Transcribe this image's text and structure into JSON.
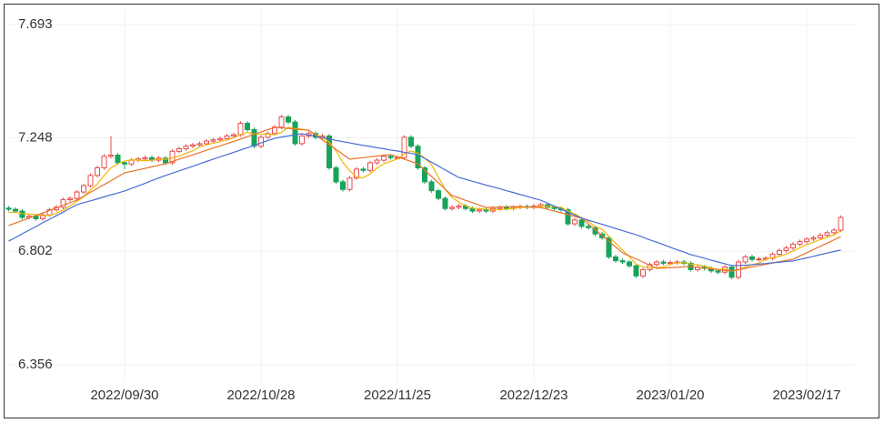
{
  "chart_data": {
    "type": "candlestick",
    "categories": [
      null,
      null,
      null,
      null,
      null,
      null,
      null,
      null,
      null,
      null,
      null,
      null,
      null,
      null,
      null,
      null,
      null,
      "2022/09/30",
      null,
      null,
      null,
      null,
      null,
      null,
      null,
      null,
      null,
      null,
      null,
      null,
      null,
      null,
      null,
      null,
      null,
      null,
      null,
      "2022/10/28",
      null,
      null,
      null,
      null,
      null,
      null,
      null,
      null,
      null,
      null,
      null,
      null,
      null,
      null,
      null,
      null,
      null,
      null,
      null,
      "2022/11/25",
      null,
      null,
      null,
      null,
      null,
      null,
      null,
      null,
      null,
      null,
      null,
      null,
      null,
      null,
      null,
      null,
      null,
      null,
      null,
      "2022/12/23",
      null,
      null,
      null,
      null,
      null,
      null,
      null,
      null,
      null,
      null,
      null,
      null,
      null,
      null,
      null,
      null,
      null,
      null,
      null,
      "2023/01/20",
      null,
      null,
      null,
      null,
      null,
      null,
      null,
      null,
      null,
      null,
      null,
      null,
      null,
      null,
      null,
      null,
      null,
      null,
      null,
      "2023/02/17",
      null,
      null,
      null,
      null,
      null
    ],
    "open": [
      6.972,
      6.967,
      6.96,
      6.935,
      6.94,
      6.93,
      6.945,
      6.965,
      6.975,
      7.005,
      7.01,
      7.035,
      7.06,
      7.1,
      7.13,
      7.175,
      7.18,
      7.15,
      7.145,
      7.16,
      7.165,
      7.17,
      7.16,
      7.168,
      7.15,
      7.195,
      7.205,
      7.215,
      7.22,
      7.225,
      7.235,
      7.24,
      7.245,
      7.255,
      7.26,
      7.305,
      7.28,
      7.215,
      7.25,
      7.265,
      7.29,
      7.33,
      7.31,
      7.225,
      7.255,
      7.265,
      7.25,
      7.255,
      7.13,
      7.075,
      7.045,
      7.09,
      7.125,
      7.12,
      7.15,
      7.16,
      7.175,
      7.17,
      7.17,
      7.25,
      7.215,
      7.13,
      7.075,
      7.04,
      7.01,
      6.97,
      6.975,
      6.98,
      6.97,
      6.96,
      6.965,
      6.96,
      6.97,
      6.975,
      6.97,
      6.975,
      6.978,
      6.975,
      6.98,
      6.985,
      6.975,
      6.97,
      6.965,
      6.91,
      6.925,
      6.9,
      6.895,
      6.87,
      6.855,
      6.78,
      6.765,
      6.76,
      6.745,
      6.705,
      6.73,
      6.75,
      6.76,
      6.755,
      6.758,
      6.76,
      6.755,
      6.73,
      6.74,
      6.735,
      6.725,
      6.72,
      6.74,
      6.7,
      6.76,
      6.78,
      6.77,
      6.772,
      6.775,
      6.79,
      6.805,
      6.815,
      6.83,
      6.84,
      6.85,
      6.855,
      6.865,
      6.875,
      6.885
    ],
    "high": [
      6.98,
      6.975,
      6.968,
      6.948,
      6.948,
      6.953,
      6.973,
      6.983,
      7.013,
      7.018,
      7.043,
      7.068,
      7.108,
      7.138,
      7.183,
      7.255,
      7.188,
      7.158,
      7.168,
      7.173,
      7.178,
      7.178,
      7.176,
      7.176,
      7.203,
      7.213,
      7.223,
      7.228,
      7.233,
      7.243,
      7.248,
      7.253,
      7.263,
      7.268,
      7.313,
      7.313,
      7.288,
      7.258,
      7.273,
      7.298,
      7.338,
      7.338,
      7.318,
      7.263,
      7.273,
      7.273,
      7.263,
      7.263,
      7.138,
      7.083,
      7.098,
      7.133,
      7.133,
      7.158,
      7.168,
      7.183,
      7.183,
      7.178,
      7.258,
      7.258,
      7.223,
      7.138,
      7.083,
      7.048,
      7.018,
      6.983,
      6.988,
      6.988,
      6.978,
      6.973,
      6.973,
      6.978,
      6.983,
      6.983,
      6.983,
      6.986,
      6.986,
      6.988,
      6.993,
      6.993,
      6.983,
      6.978,
      6.973,
      6.933,
      6.933,
      6.908,
      6.903,
      6.878,
      6.863,
      6.788,
      6.773,
      6.768,
      6.753,
      6.738,
      6.758,
      6.768,
      6.768,
      6.766,
      6.768,
      6.768,
      6.763,
      6.748,
      6.748,
      6.743,
      6.733,
      6.748,
      6.748,
      6.768,
      6.788,
      6.788,
      6.78,
      6.783,
      6.798,
      6.813,
      6.823,
      6.838,
      6.848,
      6.858,
      6.863,
      6.873,
      6.883,
      6.893,
      6.943
    ],
    "low": [
      6.959,
      6.952,
      6.927,
      6.927,
      6.922,
      6.922,
      6.937,
      6.957,
      6.967,
      6.997,
      7.002,
      7.027,
      7.052,
      7.092,
      7.122,
      7.167,
      7.142,
      7.125,
      7.137,
      7.152,
      7.157,
      7.152,
      7.152,
      7.142,
      7.142,
      7.187,
      7.197,
      7.207,
      7.212,
      7.217,
      7.227,
      7.232,
      7.237,
      7.247,
      7.252,
      7.272,
      7.207,
      7.207,
      7.242,
      7.257,
      7.282,
      7.302,
      7.217,
      7.217,
      7.247,
      7.242,
      7.242,
      7.122,
      7.067,
      7.037,
      7.037,
      7.082,
      7.112,
      7.112,
      7.142,
      7.152,
      7.162,
      7.162,
      7.162,
      7.207,
      7.122,
      7.067,
      7.032,
      7.002,
      6.962,
      6.962,
      6.967,
      6.962,
      6.952,
      6.952,
      6.952,
      6.952,
      6.962,
      6.962,
      6.962,
      6.967,
      6.967,
      6.967,
      6.972,
      6.967,
      6.962,
      6.957,
      6.902,
      6.902,
      6.892,
      6.887,
      6.862,
      6.847,
      6.772,
      6.757,
      6.752,
      6.737,
      6.697,
      6.697,
      6.722,
      6.742,
      6.747,
      6.747,
      6.75,
      6.747,
      6.722,
      6.722,
      6.727,
      6.717,
      6.712,
      6.712,
      6.692,
      6.692,
      6.752,
      6.762,
      6.762,
      6.764,
      6.767,
      6.782,
      6.797,
      6.807,
      6.822,
      6.832,
      6.842,
      6.847,
      6.857,
      6.867,
      6.877
    ],
    "close": [
      6.967,
      6.96,
      6.935,
      6.94,
      6.93,
      6.945,
      6.965,
      6.975,
      7.005,
      7.01,
      7.035,
      7.06,
      7.1,
      7.13,
      7.175,
      7.18,
      7.15,
      7.145,
      7.16,
      7.165,
      7.17,
      7.16,
      7.168,
      7.15,
      7.195,
      7.205,
      7.215,
      7.22,
      7.225,
      7.235,
      7.24,
      7.245,
      7.255,
      7.26,
      7.305,
      7.28,
      7.215,
      7.25,
      7.265,
      7.29,
      7.33,
      7.31,
      7.225,
      7.255,
      7.265,
      7.25,
      7.255,
      7.13,
      7.075,
      7.045,
      7.09,
      7.125,
      7.12,
      7.15,
      7.16,
      7.175,
      7.17,
      7.17,
      7.25,
      7.215,
      7.13,
      7.075,
      7.04,
      7.01,
      6.97,
      6.975,
      6.98,
      6.97,
      6.96,
      6.965,
      6.96,
      6.97,
      6.975,
      6.97,
      6.975,
      6.978,
      6.975,
      6.98,
      6.985,
      6.975,
      6.97,
      6.965,
      6.91,
      6.925,
      6.9,
      6.895,
      6.87,
      6.855,
      6.78,
      6.765,
      6.76,
      6.745,
      6.705,
      6.73,
      6.75,
      6.76,
      6.755,
      6.758,
      6.76,
      6.755,
      6.73,
      6.74,
      6.735,
      6.725,
      6.72,
      6.74,
      6.7,
      6.76,
      6.78,
      6.77,
      6.772,
      6.775,
      6.79,
      6.805,
      6.815,
      6.83,
      6.84,
      6.85,
      6.855,
      6.865,
      6.875,
      6.885,
      6.935
    ],
    "up_color": "#e84c4c",
    "down_color": "#17a35a",
    "series": [
      {
        "color": "#f2b705",
        "values": [
          6.955,
          6.955,
          6.95,
          6.948,
          6.946,
          6.942,
          6.943,
          6.951,
          6.964,
          6.98,
          6.998,
          7.017,
          7.042,
          7.067,
          7.1,
          7.129,
          7.147,
          7.156,
          7.162,
          7.16,
          7.158,
          7.16,
          7.165,
          7.163,
          7.169,
          7.176,
          7.187,
          7.197,
          7.212,
          7.22,
          7.227,
          7.233,
          7.24,
          7.247,
          7.261,
          7.269,
          7.263,
          7.262,
          7.263,
          7.26,
          7.27,
          7.289,
          7.284,
          7.282,
          7.277,
          7.261,
          7.25,
          7.231,
          7.195,
          7.151,
          7.119,
          7.093,
          7.091,
          7.106,
          7.129,
          7.146,
          7.155,
          7.165,
          7.185,
          7.196,
          7.187,
          7.168,
          7.142,
          7.094,
          7.045,
          7.014,
          6.995,
          6.981,
          6.971,
          6.97,
          6.967,
          6.965,
          6.966,
          6.968,
          6.97,
          6.974,
          6.975,
          6.976,
          6.979,
          6.979,
          6.977,
          6.975,
          6.961,
          6.949,
          6.934,
          6.919,
          6.9,
          6.889,
          6.86,
          6.833,
          6.806,
          6.781,
          6.751,
          6.741,
          6.738,
          6.738,
          6.74,
          6.751,
          6.757,
          6.758,
          6.752,
          6.749,
          6.744,
          6.737,
          6.73,
          6.732,
          6.724,
          6.729,
          6.74,
          6.75,
          6.756,
          6.771,
          6.777,
          6.782,
          6.791,
          6.803,
          6.816,
          6.828,
          6.838,
          6.848,
          6.857,
          6.866,
          6.883
        ]
      },
      {
        "color": "#e8732a",
        "values": [
          6.903,
          6.913,
          6.923,
          6.933,
          6.943,
          6.953,
          6.963,
          6.973,
          6.983,
          6.993,
          7.003,
          7.018,
          7.034,
          7.049,
          7.064,
          7.079,
          7.095,
          7.11,
          7.116,
          7.122,
          7.128,
          7.134,
          7.14,
          7.146,
          7.155,
          7.164,
          7.172,
          7.181,
          7.19,
          7.199,
          7.208,
          7.216,
          7.225,
          7.234,
          7.243,
          7.252,
          7.262,
          7.271,
          7.28,
          7.289,
          7.287,
          7.285,
          7.282,
          7.28,
          7.278,
          7.259,
          7.24,
          7.221,
          7.202,
          7.183,
          7.164,
          7.167,
          7.17,
          7.173,
          7.176,
          7.179,
          7.182,
          7.173,
          7.164,
          7.155,
          7.146,
          7.121,
          7.096,
          7.071,
          7.046,
          7.021,
          7.012,
          7.002,
          6.993,
          6.983,
          6.974,
          6.975,
          6.976,
          6.977,
          6.977,
          6.977,
          6.976,
          6.975,
          6.974,
          6.967,
          6.96,
          6.953,
          6.946,
          6.939,
          6.932,
          6.909,
          6.887,
          6.864,
          6.841,
          6.819,
          6.796,
          6.784,
          6.772,
          6.76,
          6.747,
          6.735,
          6.736,
          6.738,
          6.739,
          6.741,
          6.742,
          6.739,
          6.736,
          6.733,
          6.73,
          6.727,
          6.724,
          6.73,
          6.735,
          6.741,
          6.746,
          6.751,
          6.756,
          6.761,
          6.766,
          6.771,
          6.784,
          6.796,
          6.809,
          6.822,
          6.834,
          6.847,
          6.86
        ]
      },
      {
        "color": "#4a6cd4",
        "values": [
          6.842,
          6.856,
          6.871,
          6.885,
          6.899,
          6.914,
          6.928,
          6.942,
          6.956,
          6.971,
          6.985,
          6.993,
          7.0,
          7.008,
          7.016,
          7.024,
          7.031,
          7.039,
          7.049,
          7.059,
          7.069,
          7.08,
          7.09,
          7.1,
          7.109,
          7.118,
          7.127,
          7.136,
          7.146,
          7.155,
          7.164,
          7.173,
          7.182,
          7.191,
          7.2,
          7.209,
          7.218,
          7.228,
          7.237,
          7.246,
          7.251,
          7.255,
          7.26,
          7.264,
          7.259,
          7.254,
          7.249,
          7.244,
          7.238,
          7.233,
          7.228,
          7.223,
          7.218,
          7.214,
          7.209,
          7.205,
          7.2,
          7.196,
          7.191,
          7.187,
          7.182,
          7.167,
          7.152,
          7.137,
          7.122,
          7.107,
          7.092,
          7.085,
          7.077,
          7.07,
          7.062,
          7.055,
          7.048,
          7.04,
          7.033,
          7.025,
          7.018,
          7.01,
          7.003,
          6.991,
          6.979,
          6.967,
          6.956,
          6.944,
          6.932,
          6.924,
          6.916,
          6.908,
          6.9,
          6.891,
          6.883,
          6.875,
          6.867,
          6.857,
          6.847,
          6.838,
          6.828,
          6.818,
          6.808,
          6.799,
          6.789,
          6.782,
          6.775,
          6.767,
          6.76,
          6.753,
          6.746,
          6.746,
          6.747,
          6.749,
          6.752,
          6.754,
          6.757,
          6.759,
          6.762,
          6.764,
          6.77,
          6.776,
          6.782,
          6.789,
          6.795,
          6.801,
          6.807
        ]
      }
    ],
    "ylim": [
      6.356,
      7.693
    ],
    "yticks": [
      6.356,
      6.802,
      7.248,
      7.693
    ],
    "grid": true
  }
}
